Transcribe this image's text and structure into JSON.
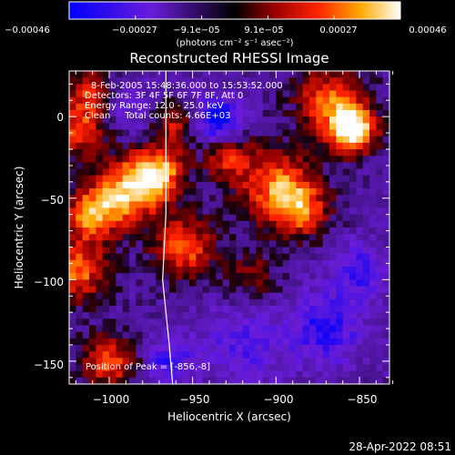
{
  "chart_data": {
    "type": "heatmap",
    "title": "Reconstructed RHESSI Image",
    "xlabel": "Heliocentric X (arcsec)",
    "ylabel": "Heliocentric Y (arcsec)",
    "xlim": [
      -1024,
      -832
    ],
    "ylim": [
      -164,
      28
    ],
    "xticks": [
      -1000,
      -950,
      -900,
      -850
    ],
    "yticks": [
      0,
      -50,
      -100,
      -150
    ],
    "xtick_labels": [
      "−1000",
      "−950",
      "−900",
      "−850"
    ],
    "ytick_labels": [
      "0",
      "−50",
      "−100",
      "−150"
    ],
    "colorbar": {
      "min": -0.00046,
      "max": 0.00046,
      "ticks": [
        "−0.00046",
        "−0.00027",
        "−9.1e−05",
        "9.1e−05",
        "0.00027",
        "0.00046"
      ],
      "units_label": "(photons cm⁻² s⁻¹ asec⁻²)"
    },
    "info_lines": [
      "8-Feb-2005 15:48:36.000 to 15:53:52.000",
      "Detectors: 3F 4F 5F 6F 7F 8F, Att 0",
      "Energy Range: 12.0 - 25.0 keV",
      "Clean     Total counts: 4.66E+03"
    ],
    "peak_label": "Position of Peak = [-856,-8]",
    "peak_position": [
      -856,
      -8
    ],
    "limb_curve": [
      [
        -966,
        28
      ],
      [
        -966,
        -60
      ],
      [
        -968,
        -100
      ],
      [
        -964,
        -140
      ],
      [
        -962,
        -164
      ]
    ],
    "blobs": [
      {
        "x": -854,
        "y": -8,
        "sigma": 10,
        "amp": 1.3
      },
      {
        "x": -868,
        "y": 10,
        "sigma": 14,
        "amp": 0.8
      },
      {
        "x": -987,
        "y": -45,
        "sigma": 14,
        "amp": 1.0
      },
      {
        "x": -970,
        "y": -34,
        "sigma": 11,
        "amp": 0.9
      },
      {
        "x": -955,
        "y": -80,
        "sigma": 13,
        "amp": 0.8
      },
      {
        "x": -1010,
        "y": -60,
        "sigma": 12,
        "amp": 0.9
      },
      {
        "x": -1018,
        "y": -8,
        "sigma": 12,
        "amp": 0.7
      },
      {
        "x": -1020,
        "y": -95,
        "sigma": 13,
        "amp": 0.85
      },
      {
        "x": -900,
        "y": -42,
        "sigma": 16,
        "amp": 0.85
      },
      {
        "x": -885,
        "y": -58,
        "sigma": 12,
        "amp": 0.7
      },
      {
        "x": -930,
        "y": -25,
        "sigma": 10,
        "amp": 0.6
      },
      {
        "x": -960,
        "y": -5,
        "sigma": 9,
        "amp": 0.55
      },
      {
        "x": -1000,
        "y": -150,
        "sigma": 12,
        "amp": 0.75
      },
      {
        "x": -1012,
        "y": 15,
        "sigma": 10,
        "amp": 0.6
      },
      {
        "x": -915,
        "y": -98,
        "sigma": 12,
        "amp": 0.4
      },
      {
        "x": -935,
        "y": -2,
        "sigma": 10,
        "amp": -0.8
      },
      {
        "x": -870,
        "y": -130,
        "sigma": 15,
        "amp": -0.6
      },
      {
        "x": -850,
        "y": -95,
        "sigma": 12,
        "amp": -0.5
      },
      {
        "x": -920,
        "y": -140,
        "sigma": 18,
        "amp": -0.4
      },
      {
        "x": -990,
        "y": 5,
        "sigma": 10,
        "amp": -0.35
      },
      {
        "x": -965,
        "y": -150,
        "sigma": 10,
        "amp": -0.55
      }
    ]
  },
  "footer": {
    "date": "28-Apr-2022 08:51"
  },
  "colors": {
    "background": "#000000",
    "text": "#ffffff"
  }
}
